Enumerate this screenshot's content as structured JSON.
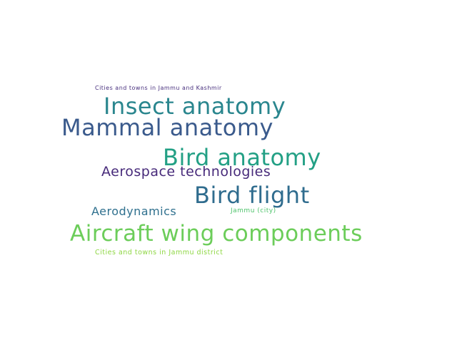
{
  "words": [
    {
      "text": "Cities and towns in Jammu and Kashmir",
      "color": "#472f7d"
    },
    {
      "text": "Insect anatomy",
      "color": "#2a868e"
    },
    {
      "text": "Mammal anatomy",
      "color": "#3a5a8c"
    },
    {
      "text": "Bird anatomy",
      "color": "#23a085"
    },
    {
      "text": "Aerospace technologies",
      "color": "#472a7a"
    },
    {
      "text": "Bird flight",
      "color": "#2f6c8e"
    },
    {
      "text": "Aerodynamics",
      "color": "#2f708e"
    },
    {
      "text": "Jammu (city)",
      "color": "#4ec36b"
    },
    {
      "text": "Aircraft wing components",
      "color": "#6ccd5a"
    },
    {
      "text": "Cities and towns in Jammu district",
      "color": "#8fd744"
    }
  ]
}
